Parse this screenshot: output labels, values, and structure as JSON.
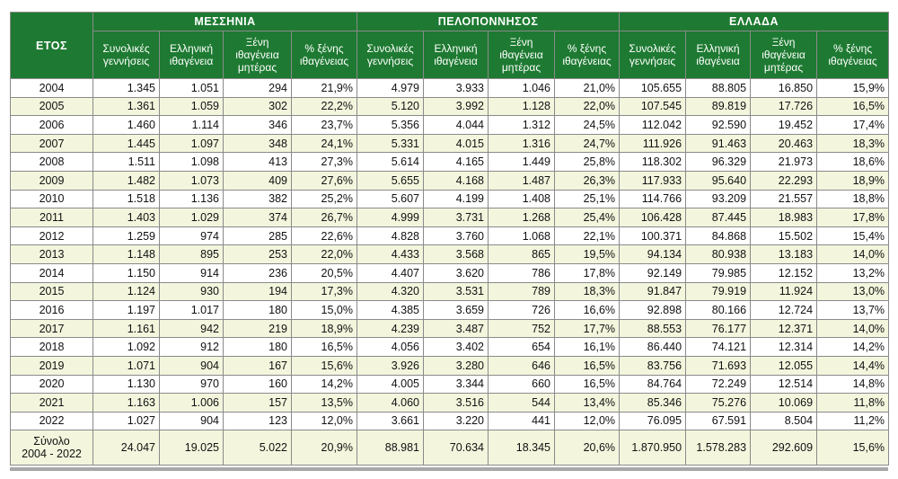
{
  "header": {
    "year_label": "ΕΤΟΣ",
    "regions": [
      "ΜΕΣΣΗΝΙΑ",
      "ΠΕΛΟΠΟΝΝΗΣΟΣ",
      "ΕΛΛΑΔΑ"
    ],
    "columns": [
      [
        "Συνολικές",
        "γεννήσεις"
      ],
      [
        "Ελληνική",
        "ιθαγένεια"
      ],
      [
        "Ξένη",
        "ιθαγένεια",
        "μητέρας"
      ],
      [
        "% ξένης",
        "ιθαγένειας"
      ]
    ]
  },
  "rows": [
    [
      "2004",
      "1.345",
      "1.051",
      "294",
      "21,9%",
      "4.979",
      "3.933",
      "1.046",
      "21,0%",
      "105.655",
      "88.805",
      "16.850",
      "15,9%"
    ],
    [
      "2005",
      "1.361",
      "1.059",
      "302",
      "22,2%",
      "5.120",
      "3.992",
      "1.128",
      "22,0%",
      "107.545",
      "89.819",
      "17.726",
      "16,5%"
    ],
    [
      "2006",
      "1.460",
      "1.114",
      "346",
      "23,7%",
      "5.356",
      "4.044",
      "1.312",
      "24,5%",
      "112.042",
      "92.590",
      "19.452",
      "17,4%"
    ],
    [
      "2007",
      "1.445",
      "1.097",
      "348",
      "24,1%",
      "5.331",
      "4.015",
      "1.316",
      "24,7%",
      "111.926",
      "91.463",
      "20.463",
      "18,3%"
    ],
    [
      "2008",
      "1.511",
      "1.098",
      "413",
      "27,3%",
      "5.614",
      "4.165",
      "1.449",
      "25,8%",
      "118.302",
      "96.329",
      "21.973",
      "18,6%"
    ],
    [
      "2009",
      "1.482",
      "1.073",
      "409",
      "27,6%",
      "5.655",
      "4.168",
      "1.487",
      "26,3%",
      "117.933",
      "95.640",
      "22.293",
      "18,9%"
    ],
    [
      "2010",
      "1.518",
      "1.136",
      "382",
      "25,2%",
      "5.607",
      "4.199",
      "1.408",
      "25,1%",
      "114.766",
      "93.209",
      "21.557",
      "18,8%"
    ],
    [
      "2011",
      "1.403",
      "1.029",
      "374",
      "26,7%",
      "4.999",
      "3.731",
      "1.268",
      "25,4%",
      "106.428",
      "87.445",
      "18.983",
      "17,8%"
    ],
    [
      "2012",
      "1.259",
      "974",
      "285",
      "22,6%",
      "4.828",
      "3.760",
      "1.068",
      "22,1%",
      "100.371",
      "84.868",
      "15.502",
      "15,4%"
    ],
    [
      "2013",
      "1.148",
      "895",
      "253",
      "22,0%",
      "4.433",
      "3.568",
      "865",
      "19,5%",
      "94.134",
      "80.938",
      "13.183",
      "14,0%"
    ],
    [
      "2014",
      "1.150",
      "914",
      "236",
      "20,5%",
      "4.407",
      "3.620",
      "786",
      "17,8%",
      "92.149",
      "79.985",
      "12.152",
      "13,2%"
    ],
    [
      "2015",
      "1.124",
      "930",
      "194",
      "17,3%",
      "4.320",
      "3.531",
      "789",
      "18,3%",
      "91.847",
      "79.919",
      "11.924",
      "13,0%"
    ],
    [
      "2016",
      "1.197",
      "1.017",
      "180",
      "15,0%",
      "4.385",
      "3.659",
      "726",
      "16,6%",
      "92.898",
      "80.166",
      "12.724",
      "13,7%"
    ],
    [
      "2017",
      "1.161",
      "942",
      "219",
      "18,9%",
      "4.239",
      "3.487",
      "752",
      "17,7%",
      "88.553",
      "76.177",
      "12.371",
      "14,0%"
    ],
    [
      "2018",
      "1.092",
      "912",
      "180",
      "16,5%",
      "4.056",
      "3.402",
      "654",
      "16,1%",
      "86.440",
      "74.121",
      "12.314",
      "14,2%"
    ],
    [
      "2019",
      "1.071",
      "904",
      "167",
      "15,6%",
      "3.926",
      "3.280",
      "646",
      "16,5%",
      "83.756",
      "71.693",
      "12.055",
      "14,4%"
    ],
    [
      "2020",
      "1.130",
      "970",
      "160",
      "14,2%",
      "4.005",
      "3.344",
      "660",
      "16,5%",
      "84.764",
      "72.249",
      "12.514",
      "14,8%"
    ],
    [
      "2021",
      "1.163",
      "1.006",
      "157",
      "13,5%",
      "4.060",
      "3.516",
      "544",
      "13,4%",
      "85.346",
      "75.276",
      "10.069",
      "11,8%"
    ],
    [
      "2022",
      "1.027",
      "904",
      "123",
      "12,0%",
      "3.661",
      "3.220",
      "441",
      "12,0%",
      "76.095",
      "67.591",
      "8.504",
      "11,2%"
    ]
  ],
  "total": {
    "label": [
      "Σύνολο",
      "2004 - 2022"
    ],
    "values": [
      "24.047",
      "19.025",
      "5.022",
      "20,9%",
      "88.981",
      "70.634",
      "18.345",
      "20,6%",
      "1.870.950",
      "1.578.283",
      "292.609",
      "15,6%"
    ]
  }
}
